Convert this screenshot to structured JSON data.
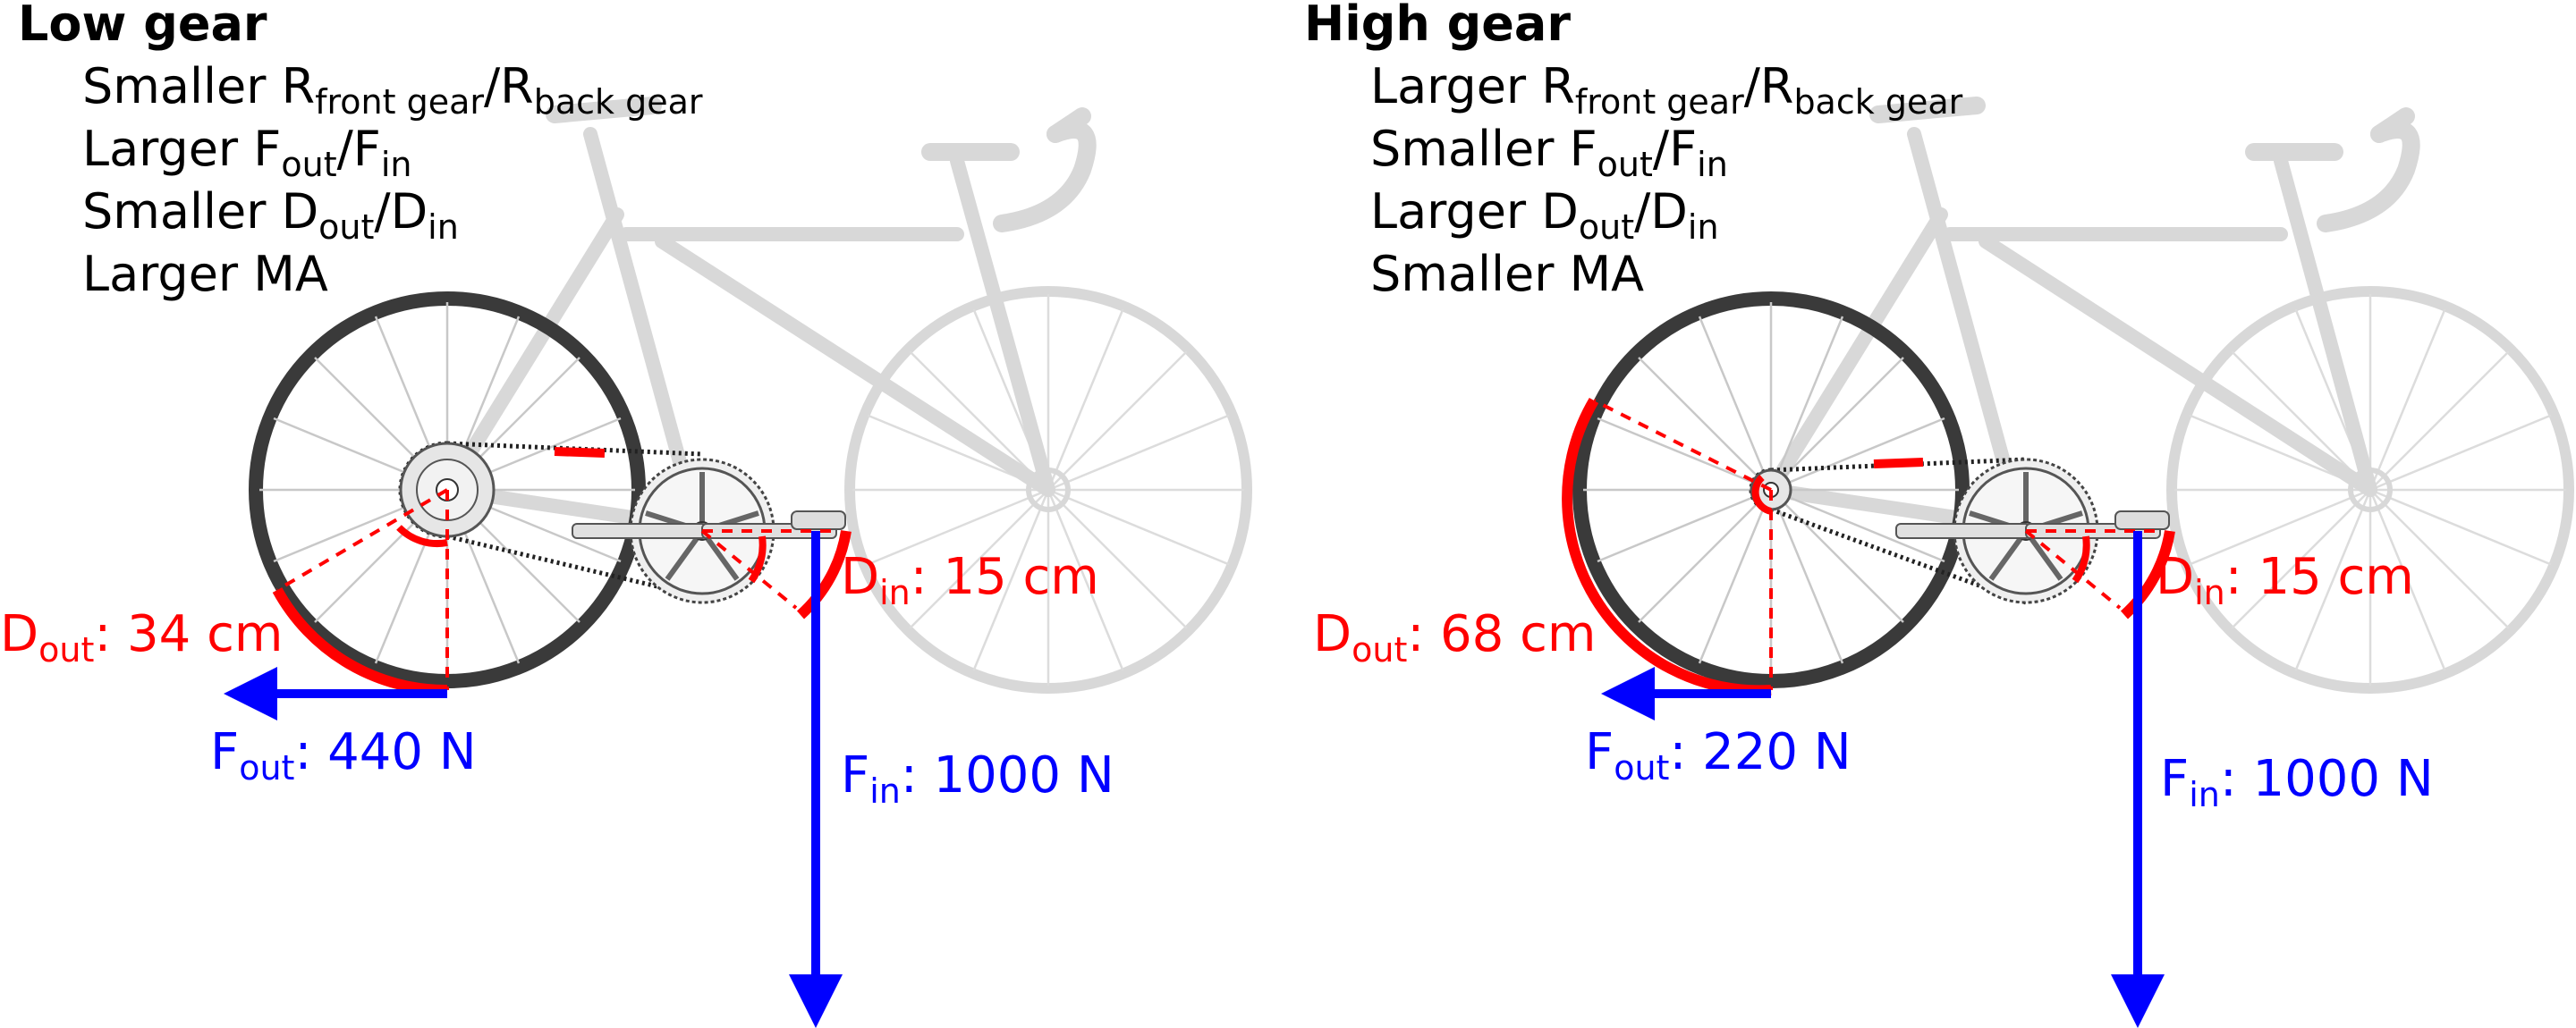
{
  "colors": {
    "dimension": "#ff0000",
    "force": "#0000ff",
    "bike_faded": "#d0d0d0",
    "rear_wheel": "#3a3a3a"
  },
  "panels": [
    {
      "title": "Low gear",
      "properties": [
        {
          "pre": "Smaller R",
          "sub1": "front gear",
          "mid": "/R",
          "sub2": "back gear"
        },
        {
          "pre": "Larger F",
          "sub1": "out",
          "mid": "/F",
          "sub2": "in"
        },
        {
          "pre": "Smaller D",
          "sub1": "out",
          "mid": "/D",
          "sub2": "in"
        },
        {
          "pre": "Larger MA",
          "sub1": "",
          "mid": "",
          "sub2": ""
        }
      ],
      "d_out": {
        "sym": "D",
        "sub": "out",
        "value": ": 34 cm"
      },
      "d_in": {
        "sym": "D",
        "sub": "in",
        "value": ": 15 cm"
      },
      "f_out": {
        "sym": "F",
        "sub": "out",
        "value": ": 440 N"
      },
      "f_in": {
        "sym": "F",
        "sub": "in",
        "value": ": 1000 N"
      }
    },
    {
      "title": "High gear",
      "properties": [
        {
          "pre": "Larger R",
          "sub1": "front gear",
          "mid": "/R",
          "sub2": "back gear"
        },
        {
          "pre": "Smaller F",
          "sub1": "out",
          "mid": "/F",
          "sub2": "in"
        },
        {
          "pre": "Larger D",
          "sub1": "out",
          "mid": "/D",
          "sub2": "in"
        },
        {
          "pre": "Smaller MA",
          "sub1": "",
          "mid": "",
          "sub2": ""
        }
      ],
      "d_out": {
        "sym": "D",
        "sub": "out",
        "value": ": 68 cm"
      },
      "d_in": {
        "sym": "D",
        "sub": "in",
        "value": ": 15 cm"
      },
      "f_out": {
        "sym": "F",
        "sub": "out",
        "value": ": 220 N"
      },
      "f_in": {
        "sym": "F",
        "sub": "in",
        "value": ": 1000 N"
      }
    }
  ]
}
